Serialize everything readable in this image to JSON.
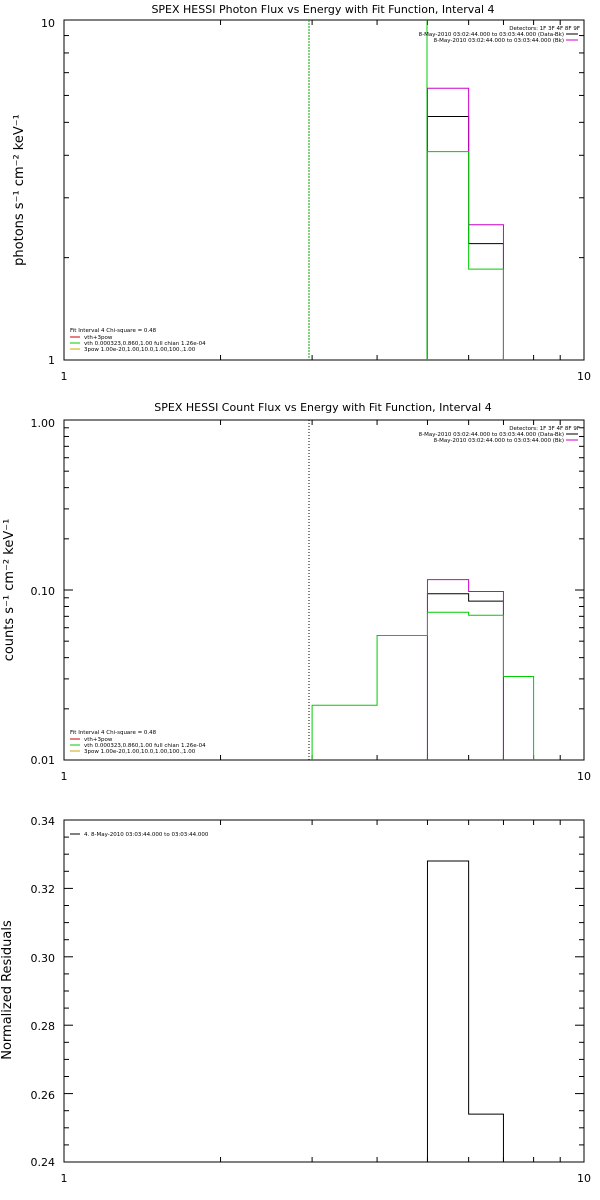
{
  "chart_data": [
    {
      "type": "line",
      "title": "SPEX HESSI Photon Flux vs Energy with Fit Function, Interval 4",
      "ylabel": "photons s⁻¹ cm⁻² keV⁻¹",
      "xscale": "log",
      "yscale": "log",
      "xlim": [
        1,
        10
      ],
      "ylim": [
        1,
        10
      ],
      "xticks": [
        "1",
        "10"
      ],
      "yticks": [
        "1",
        "10"
      ],
      "legend_top": [
        "Detectors: 1F 3F 4F 8F 9F",
        "8-May-2010 03:02:44.000 to 03:03:44.000 (Data-Bk)",
        "8-May-2010 03:02:44.000 to 03:03:44.000 (Bk)"
      ],
      "legend_bottom": [
        "Fit Interval  4   Chi-square = 0.48",
        "vth+3pow",
        "vth 0.000323,0.860,1.00  full chian 1.26e-04",
        "3pow 1.00e-20,1.00,10.0,1.00,100.,1.00"
      ],
      "markers": [
        {
          "x": 3.0,
          "style": "green-dashed"
        },
        {
          "x": 5.0,
          "style": "green-solid"
        }
      ],
      "series": [
        {
          "name": "Data-Bk",
          "color": "#000000",
          "bins": [
            [
              5.0,
              6.0,
              5.2
            ],
            [
              6.0,
              7.0,
              2.2
            ]
          ]
        },
        {
          "name": "Bk",
          "color": "#cc00cc",
          "bins": [
            [
              5.0,
              6.0,
              6.3
            ],
            [
              6.0,
              7.0,
              2.5
            ]
          ]
        },
        {
          "name": "vth+3pow",
          "color": "#00cc00",
          "bins": [
            [
              5.0,
              6.0,
              4.1
            ],
            [
              6.0,
              7.0,
              1.85
            ]
          ]
        }
      ]
    },
    {
      "type": "line",
      "title": "SPEX HESSI Count Flux vs Energy with Fit Function, Interval 4",
      "ylabel": "counts s⁻¹ cm⁻² keV⁻¹",
      "xscale": "log",
      "yscale": "log",
      "xlim": [
        1,
        10
      ],
      "ylim": [
        0.01,
        1.0
      ],
      "xticks": [
        "1",
        "10"
      ],
      "yticks": [
        "0.01",
        "0.10",
        "1.00"
      ],
      "legend_top": [
        "Detectors: 1F 3F 4F 8F 9F",
        "8-May-2010 03:02:44.000 to 03:03:44.000 (Data-Bk)",
        "8-May-2010 03:02:44.000 to 03:03:44.000 (Bk)"
      ],
      "legend_bottom": [
        "Fit Interval  4   Chi-square = 0.48",
        "vth+3pow",
        "vth 0.000323,0.860,1.00  full chian 1.26e-04",
        "3pow 1.00e-20,1.00,10.0,1.00,100.,1.00"
      ],
      "markers": [
        {
          "x": 3.0,
          "style": "black-dotted"
        }
      ],
      "series": [
        {
          "name": "Data-Bk",
          "color": "#000000",
          "bins": [
            [
              5.0,
              6.0,
              0.095
            ],
            [
              6.0,
              7.0,
              0.086
            ]
          ]
        },
        {
          "name": "Bk",
          "color": "#cc00cc",
          "bins": [
            [
              5.0,
              6.0,
              0.115
            ],
            [
              6.0,
              7.0,
              0.098
            ]
          ]
        },
        {
          "name": "vth+3pow",
          "color": "#00cc00",
          "bins": [
            [
              3.0,
              4.0,
              0.021
            ],
            [
              4.0,
              5.0,
              0.054
            ],
            [
              5.0,
              6.0,
              0.074
            ],
            [
              6.0,
              7.0,
              0.071
            ],
            [
              7.0,
              8.0,
              0.031
            ]
          ]
        }
      ]
    },
    {
      "type": "line",
      "title": "",
      "ylabel": "Normalized Residuals",
      "xscale": "log",
      "yscale": "linear",
      "xlim": [
        1,
        10
      ],
      "ylim": [
        0.24,
        0.34
      ],
      "xticks": [
        "1",
        "10"
      ],
      "yticks": [
        "0.24",
        "0.26",
        "0.28",
        "0.30",
        "0.32",
        "0.34"
      ],
      "legend_top_left": [
        "4.  8-May-2010 03:03:44.000 to 03:03:44.000"
      ],
      "series": [
        {
          "name": "residuals",
          "color": "#000000",
          "bins": [
            [
              5.0,
              6.0,
              0.328
            ],
            [
              6.0,
              7.0,
              0.254
            ]
          ]
        }
      ]
    }
  ]
}
